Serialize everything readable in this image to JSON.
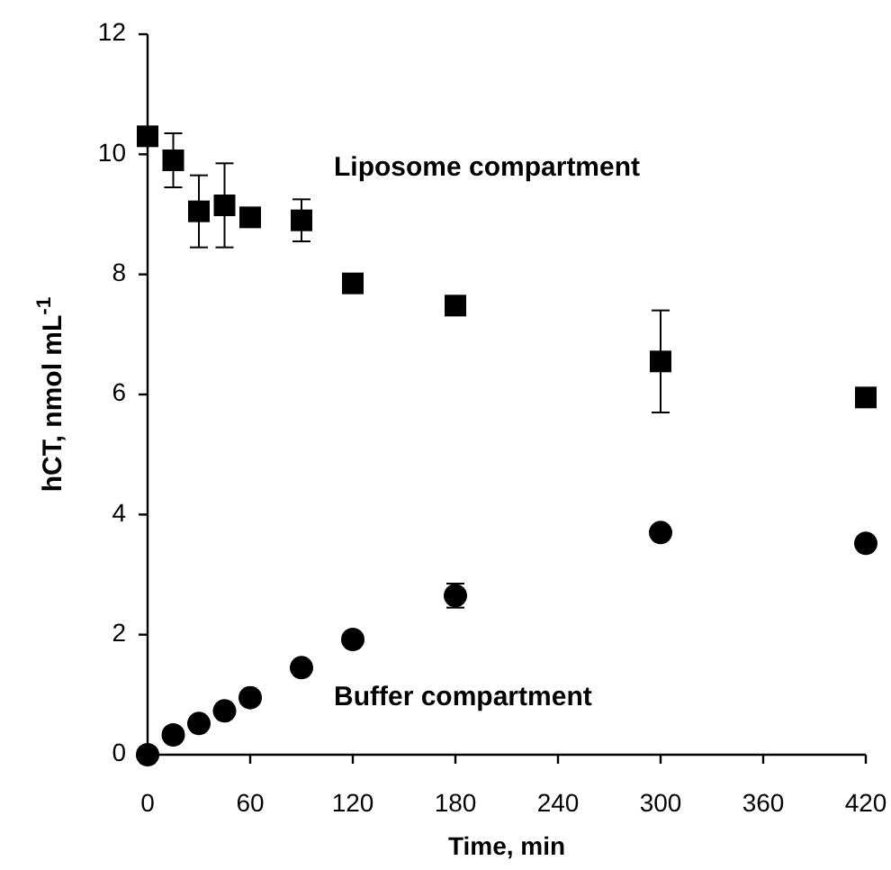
{
  "chart_data": {
    "type": "scatter",
    "xlabel": "Time, min",
    "ylabel": "hCT, nmol mL$^{-1}$",
    "xlim": [
      0,
      420
    ],
    "xticks": [
      0,
      60,
      120,
      180,
      240,
      300,
      360,
      420
    ],
    "ylim": [
      0,
      12
    ],
    "yticks": [
      0,
      2,
      4,
      6,
      8,
      10,
      12
    ],
    "grid": false,
    "series": [
      {
        "name": "Liposome compartment",
        "color": "#000000",
        "marker": "square",
        "x": [
          0,
          15,
          30,
          45,
          60,
          90,
          120,
          180,
          300,
          420
        ],
        "values": [
          10.3,
          9.9,
          9.05,
          9.15,
          8.95,
          8.9,
          7.85,
          7.48,
          6.55,
          5.95
        ],
        "errors": [
          null,
          0.45,
          0.6,
          0.7,
          null,
          0.35,
          null,
          null,
          0.85,
          null
        ]
      },
      {
        "name": "Buffer compartment",
        "color": "#000000",
        "marker": "circle",
        "x": [
          0,
          15,
          30,
          45,
          60,
          90,
          120,
          180,
          300,
          420
        ],
        "values": [
          0,
          0.33,
          0.52,
          0.73,
          0.95,
          1.45,
          1.92,
          2.65,
          3.7,
          3.52
        ],
        "errors": [
          null,
          null,
          null,
          null,
          null,
          null,
          null,
          0.2,
          null,
          null
        ]
      }
    ]
  }
}
